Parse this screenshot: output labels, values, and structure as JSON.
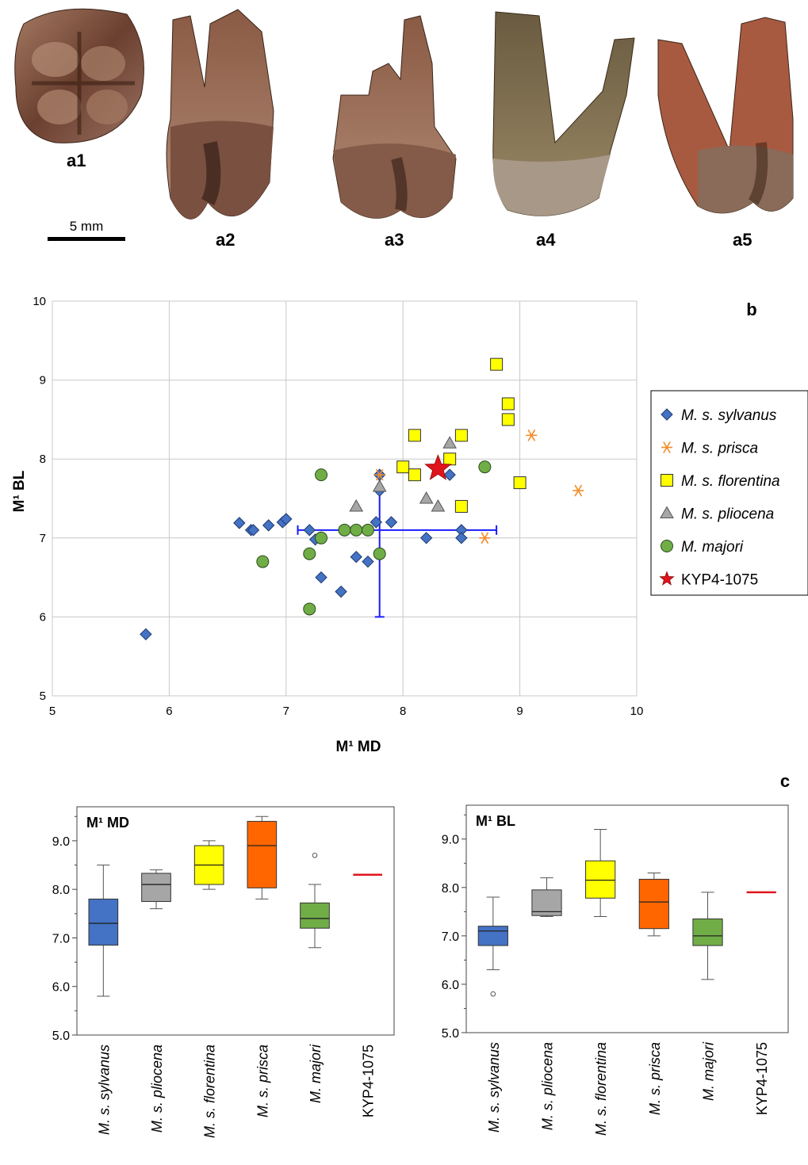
{
  "photos": {
    "labels": [
      "a1",
      "a2",
      "a3",
      "a4",
      "a5"
    ],
    "scale_label": "5 mm"
  },
  "panel_letters": {
    "b": "b",
    "c": "c"
  },
  "colors": {
    "sylvanus": "#4472c4",
    "prisca": "#f28c28",
    "florentina": "#ffff00",
    "pliocena": "#a6a6a6",
    "majori": "#70ad47",
    "kyp": "#e0141c",
    "errorbar": "#1a1aff",
    "box_prisca": "#ff6600"
  },
  "chart_data": [
    {
      "type": "scatter",
      "title": "",
      "xlabel": "M¹ MD",
      "ylabel": "M¹ BL",
      "xlim": [
        5,
        10
      ],
      "ylim": [
        5,
        10
      ],
      "xticks": [
        "5",
        "6",
        "7",
        "8",
        "9",
        "10"
      ],
      "yticks": [
        "5",
        "6",
        "7",
        "8",
        "9",
        "10"
      ],
      "grid": true,
      "legend_position": "right",
      "series": [
        {
          "name": "M. s. sylvanus",
          "marker": "diamond",
          "x": [
            5.8,
            6.6,
            6.7,
            6.72,
            6.85,
            6.97,
            7.0,
            7.2,
            7.25,
            7.3,
            7.47,
            7.6,
            7.7,
            7.77,
            7.8,
            7.8,
            7.9,
            8.2,
            8.4,
            8.5,
            8.5
          ],
          "y": [
            5.78,
            7.19,
            7.1,
            7.1,
            7.16,
            7.2,
            7.24,
            7.1,
            6.98,
            6.5,
            6.32,
            6.76,
            6.7,
            7.2,
            7.6,
            7.8,
            7.2,
            7.0,
            7.8,
            7.1,
            7.0
          ]
        },
        {
          "name": "M. s. prisca",
          "marker": "asterisk",
          "x": [
            7.8,
            8.7,
            9.1,
            9.5
          ],
          "y": [
            7.8,
            7.0,
            8.3,
            7.6
          ]
        },
        {
          "name": "M. s. florentina",
          "marker": "square",
          "x": [
            8.0,
            8.1,
            8.1,
            8.4,
            8.5,
            8.5,
            8.8,
            8.9,
            8.9,
            9.0
          ],
          "y": [
            7.9,
            8.3,
            7.8,
            8.0,
            8.3,
            7.4,
            9.2,
            8.7,
            8.5,
            7.7
          ]
        },
        {
          "name": "M. s. pliocena",
          "marker": "triangle",
          "x": [
            7.6,
            7.8,
            8.2,
            8.3,
            8.4
          ],
          "y": [
            7.4,
            7.65,
            7.5,
            7.4,
            8.2
          ]
        },
        {
          "name": "M. majori",
          "marker": "circle",
          "x": [
            6.8,
            7.2,
            7.2,
            7.3,
            7.3,
            7.5,
            7.6,
            7.7,
            7.8,
            8.7
          ],
          "y": [
            6.7,
            6.1,
            6.8,
            7.8,
            7.0,
            7.1,
            7.1,
            7.1,
            6.8,
            7.9
          ]
        },
        {
          "name": "KYP4-1075",
          "marker": "star",
          "x": [
            8.3
          ],
          "y": [
            7.88
          ]
        }
      ],
      "error_bars": {
        "center": [
          7.8,
          7.1
        ],
        "x_range": [
          7.1,
          8.8
        ],
        "y_range": [
          6.0,
          7.8
        ]
      }
    },
    {
      "type": "box",
      "title": "M¹ MD",
      "ylim": [
        5.0,
        9.7
      ],
      "yticks": [
        "5.0",
        "6.0",
        "7.0",
        "8.0",
        "9.0"
      ],
      "categories": [
        "M. s. sylvanus",
        "M. s. pliocena",
        "M. s. florentina",
        "M. s. prisca",
        "M. majori",
        "KYP4-1075"
      ],
      "boxes": [
        {
          "min": 5.8,
          "q1": 6.85,
          "median": 7.3,
          "q3": 7.8,
          "max": 8.5
        },
        {
          "min": 7.6,
          "q1": 7.75,
          "median": 8.1,
          "q3": 8.33,
          "max": 8.4
        },
        {
          "min": 8.0,
          "q1": 8.1,
          "median": 8.5,
          "q3": 8.9,
          "max": 9.0
        },
        {
          "min": 7.8,
          "q1": 8.03,
          "median": 8.9,
          "q3": 9.4,
          "max": 9.5
        },
        {
          "min": 6.8,
          "q1": 7.2,
          "median": 7.4,
          "q3": 7.72,
          "max": 8.1,
          "outliers": [
            8.7
          ]
        },
        {
          "value": 8.3
        }
      ]
    },
    {
      "type": "box",
      "title": "M¹ BL",
      "ylim": [
        5.0,
        9.7
      ],
      "yticks": [
        "5.0",
        "6.0",
        "7.0",
        "8.0",
        "9.0"
      ],
      "categories": [
        "M. s. sylvanus",
        "M. s. pliocena",
        "M. s. florentina",
        "M. s. prisca",
        "M. majori",
        "KYP4-1075"
      ],
      "boxes": [
        {
          "min": 6.3,
          "q1": 6.8,
          "median": 7.1,
          "q3": 7.2,
          "max": 7.8,
          "outliers": [
            5.8
          ]
        },
        {
          "min": 7.4,
          "q1": 7.42,
          "median": 7.5,
          "q3": 7.95,
          "max": 8.2
        },
        {
          "min": 7.4,
          "q1": 7.78,
          "median": 8.15,
          "q3": 8.55,
          "max": 9.2
        },
        {
          "min": 7.0,
          "q1": 7.15,
          "median": 7.7,
          "q3": 8.17,
          "max": 8.3
        },
        {
          "min": 6.1,
          "q1": 6.8,
          "median": 7.0,
          "q3": 7.35,
          "max": 7.9
        },
        {
          "value": 7.9
        }
      ]
    }
  ]
}
